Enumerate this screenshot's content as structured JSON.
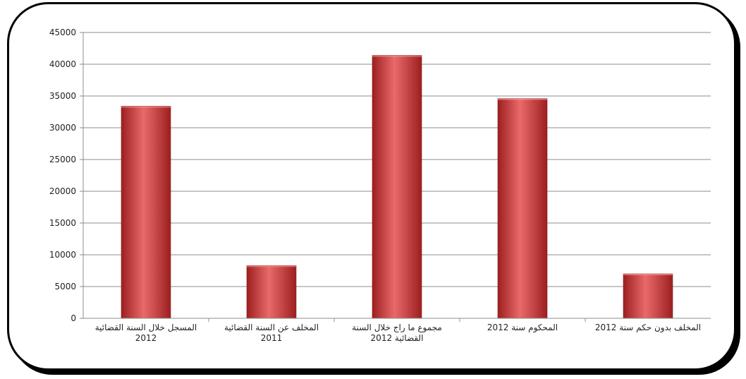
{
  "chart_data": {
    "type": "bar",
    "categories": [
      [
        "المسجل خلال السنة القضائية",
        "2012"
      ],
      [
        "المخلف عن السنة القضائية",
        "2011"
      ],
      [
        "مجموع ما راج خلال السنة",
        "القضائية 2012"
      ],
      [
        "المحكوم سنة 2012"
      ],
      [
        "المخلف بدون حكم سنة 2012"
      ]
    ],
    "values": [
      33400,
      8300,
      41400,
      34600,
      7000
    ],
    "ylim": [
      0,
      45000
    ],
    "yticks": [
      0,
      5000,
      10000,
      15000,
      20000,
      25000,
      30000,
      35000,
      40000,
      45000
    ],
    "grid": true,
    "title": "",
    "xlabel": "",
    "ylabel": "",
    "colors": {
      "bar": "#d64545",
      "bar_dark": "#9c1f1f",
      "bar_light": "#ea6a6a",
      "grid": "#8c8c8c",
      "axis": "#8c8c8c",
      "text": "#222222"
    }
  }
}
